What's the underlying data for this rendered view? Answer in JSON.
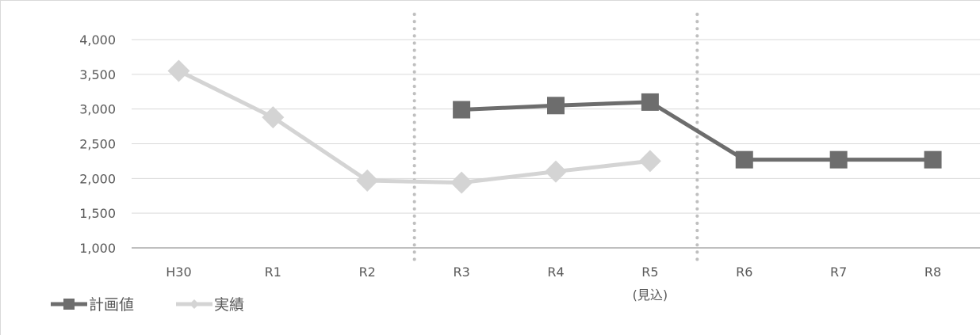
{
  "chart_data": {
    "type": "line",
    "categories": [
      "H30",
      "R1",
      "R2",
      "R3",
      "R4",
      "R5",
      "R6",
      "R7",
      "R8"
    ],
    "category_sublabels": [
      "",
      "",
      "",
      "",
      "",
      "(見込)",
      "",
      "",
      ""
    ],
    "series": [
      {
        "name": "計画値",
        "values": [
          null,
          null,
          null,
          2990,
          3050,
          3100,
          2270,
          2270,
          2270
        ],
        "color": "#6d6d6d",
        "marker": "square"
      },
      {
        "name": "実績",
        "values": [
          3550,
          2880,
          1970,
          1940,
          2100,
          2250,
          null,
          null,
          null
        ],
        "color": "#d4d4d4",
        "marker": "diamond"
      }
    ],
    "y_ticks": [
      "1,000",
      "1,500",
      "2,000",
      "2,500",
      "3,000",
      "3,500",
      "4,000"
    ],
    "ylim": [
      1000,
      4000
    ],
    "grid": true,
    "period_dividers_after_index": [
      2,
      5
    ],
    "legend_position": "bottom-left"
  }
}
